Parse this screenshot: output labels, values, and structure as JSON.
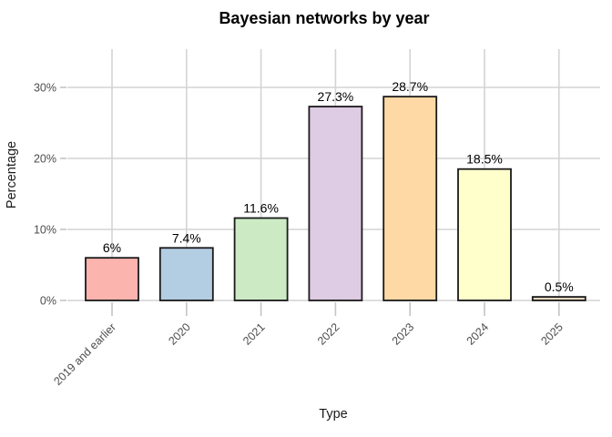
{
  "chart_data": {
    "type": "bar",
    "title": "Bayesian networks by year",
    "xlabel": "Type",
    "ylabel": "Percentage",
    "categories": [
      "2019 and earlier",
      "2020",
      "2021",
      "2022",
      "2023",
      "2024",
      "2025"
    ],
    "values": [
      6,
      7.4,
      11.6,
      27.3,
      28.7,
      18.5,
      0.5
    ],
    "value_labels": [
      "6%",
      "7.4%",
      "11.6%",
      "27.3%",
      "28.7%",
      "18.5%",
      "0.5%"
    ],
    "bar_colors": [
      "#FBB4AE",
      "#B3CDE3",
      "#CCEBC5",
      "#DECBE4",
      "#FED9A6",
      "#FFFFCC",
      "#E5D8BD"
    ],
    "bar_border_color": "#1a1a1a",
    "yticks": [
      0,
      10,
      20,
      30
    ],
    "ytick_labels": [
      "0%",
      "10%",
      "20%",
      "30%"
    ],
    "ylim": [
      0,
      30
    ],
    "grid": true,
    "gridline_color": "#d4d4d4",
    "tick_mark_color": "#c4c4c4",
    "legend": "none",
    "background_color": "#ffffff"
  }
}
